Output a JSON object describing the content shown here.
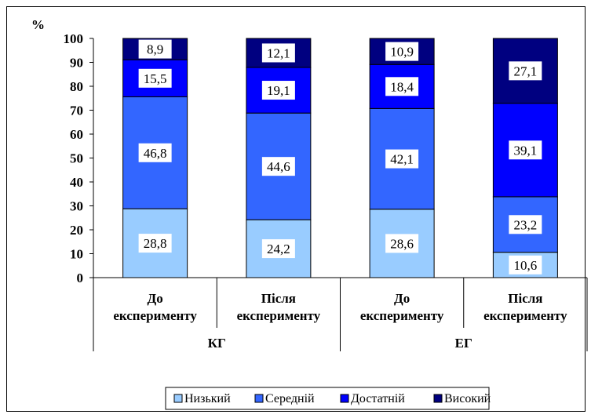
{
  "chart_data": {
    "type": "bar",
    "stacked": true,
    "ylabel": "%",
    "ylim": [
      0,
      100
    ],
    "yticks": [
      0,
      10,
      20,
      30,
      40,
      50,
      60,
      70,
      80,
      90,
      100
    ],
    "categories": [
      [
        "До",
        "експерименту"
      ],
      [
        "Після",
        "експерименту"
      ],
      [
        "До",
        "експерименту"
      ],
      [
        "Після",
        "експерименту"
      ]
    ],
    "groups": [
      {
        "label": "КГ",
        "span": [
          0,
          1
        ]
      },
      {
        "label": "ЕГ",
        "span": [
          2,
          3
        ]
      }
    ],
    "series": [
      {
        "name": "Низький",
        "color": "#99ccff",
        "values": [
          28.8,
          24.2,
          28.6,
          10.6
        ],
        "labels": [
          "28,8",
          "24,2",
          "28,6",
          "10,6"
        ]
      },
      {
        "name": "Середній",
        "color": "#3366ff",
        "values": [
          46.8,
          44.6,
          42.1,
          23.2
        ],
        "labels": [
          "46,8",
          "44,6",
          "42,1",
          "23,2"
        ]
      },
      {
        "name": "Достатній",
        "color": "#0000ff",
        "values": [
          15.5,
          19.1,
          18.4,
          39.1
        ],
        "labels": [
          "15,5",
          "19,1",
          "18,4",
          "39,1"
        ]
      },
      {
        "name": "Високий",
        "color": "#000080",
        "values": [
          8.9,
          12.1,
          10.9,
          27.1
        ],
        "labels": [
          "8,9",
          "12,1",
          "10,9",
          "27,1"
        ]
      }
    ],
    "legend_position": "bottom",
    "grid": false
  }
}
